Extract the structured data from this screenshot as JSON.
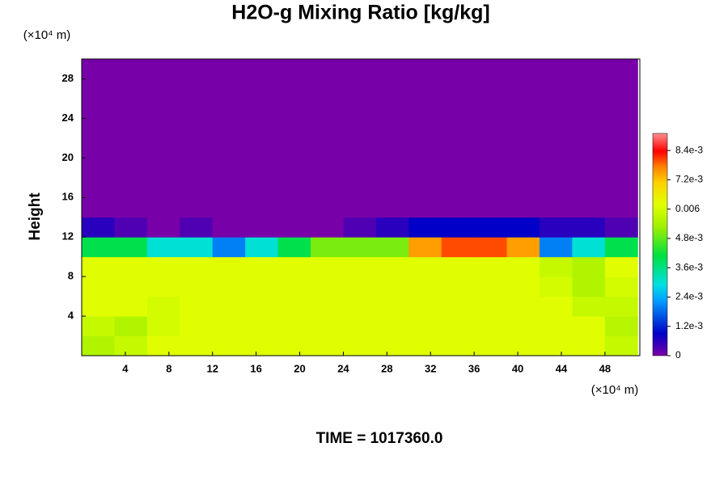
{
  "chart_data": {
    "type": "heatmap",
    "title": "H2O-g Mixing Ratio [kg/kg]",
    "ylabel": "Height",
    "x_unit": "(×10⁴ m)",
    "y_unit": "(×10⁴ m)",
    "annotation": "TIME = 1017360.0",
    "xlim": [
      0,
      51.2
    ],
    "ylim": [
      0,
      30
    ],
    "xticks": [
      4,
      8,
      12,
      16,
      20,
      24,
      28,
      32,
      36,
      40,
      44,
      48
    ],
    "yticks": [
      4,
      8,
      12,
      16,
      20,
      24,
      28
    ],
    "xbins": [
      0,
      3,
      6,
      9,
      12,
      15,
      18,
      21,
      24,
      27,
      30,
      33,
      36,
      39,
      42,
      45,
      48,
      51
    ],
    "ybins": [
      0,
      2,
      4,
      6,
      8,
      10,
      12,
      14,
      16,
      18,
      20,
      22,
      24,
      26,
      28,
      30
    ],
    "z": [
      [
        0.0055,
        0.0058,
        0.0062,
        0.0062,
        0.0062,
        0.0062,
        0.0062,
        0.0062,
        0.0062,
        0.0062,
        0.0062,
        0.0062,
        0.0062,
        0.0062,
        0.0062,
        0.0062,
        0.0058
      ],
      [
        0.0058,
        0.0055,
        0.006,
        0.0062,
        0.0062,
        0.0062,
        0.0062,
        0.0062,
        0.0062,
        0.0062,
        0.0062,
        0.0062,
        0.0062,
        0.0062,
        0.0062,
        0.0062,
        0.0056
      ],
      [
        0.0062,
        0.0062,
        0.006,
        0.0062,
        0.0062,
        0.0062,
        0.0062,
        0.0062,
        0.0062,
        0.0062,
        0.0062,
        0.0062,
        0.0062,
        0.0062,
        0.0062,
        0.0058,
        0.0058
      ],
      [
        0.0062,
        0.0062,
        0.0062,
        0.0062,
        0.0062,
        0.0062,
        0.0062,
        0.0062,
        0.0062,
        0.0062,
        0.0062,
        0.0062,
        0.0062,
        0.0062,
        0.006,
        0.0055,
        0.006
      ],
      [
        0.0062,
        0.0062,
        0.0062,
        0.0062,
        0.0062,
        0.0062,
        0.0062,
        0.0062,
        0.0062,
        0.0062,
        0.0062,
        0.0062,
        0.0062,
        0.0062,
        0.0058,
        0.0055,
        0.0062
      ],
      [
        0.004,
        0.004,
        0.003,
        0.003,
        0.002,
        0.003,
        0.004,
        0.005,
        0.005,
        0.005,
        0.0075,
        0.008,
        0.008,
        0.0075,
        0.002,
        0.003,
        0.004
      ],
      [
        0.0006,
        0.0003,
        0,
        0.0003,
        0,
        0,
        0,
        0,
        0.0003,
        0.0006,
        0.0009,
        0.0009,
        0.0009,
        0.0009,
        0.0006,
        0.0006,
        0.0003
      ],
      [
        0,
        0,
        0,
        0,
        0,
        0,
        0,
        0,
        0,
        0,
        0,
        0,
        0,
        0,
        0,
        0,
        0
      ],
      [
        0,
        0,
        0,
        0,
        0,
        0,
        0,
        0,
        0,
        0,
        0,
        0,
        0,
        0,
        0,
        0,
        0
      ],
      [
        0,
        0,
        0,
        0,
        0,
        0,
        0,
        0,
        0,
        0,
        0,
        0,
        0,
        0,
        0,
        0,
        0
      ],
      [
        0,
        0,
        0,
        0,
        0,
        0,
        0,
        0,
        0,
        0,
        0,
        0,
        0,
        0,
        0,
        0,
        0
      ],
      [
        0,
        0,
        0,
        0,
        0,
        0,
        0,
        0,
        0,
        0,
        0,
        0,
        0,
        0,
        0,
        0,
        0
      ],
      [
        0,
        0,
        0,
        0,
        0,
        0,
        0,
        0,
        0,
        0,
        0,
        0,
        0,
        0,
        0,
        0,
        0
      ],
      [
        0,
        0,
        0,
        0,
        0,
        0,
        0,
        0,
        0,
        0,
        0,
        0,
        0,
        0,
        0,
        0,
        0
      ],
      [
        0,
        0,
        0,
        0,
        0,
        0,
        0,
        0,
        0,
        0,
        0,
        0,
        0,
        0,
        0,
        0,
        0
      ]
    ],
    "clim": [
      0,
      0.0091
    ],
    "colorscale": [
      [
        0,
        "#7800a8"
      ],
      [
        0.1,
        "#0000c8"
      ],
      [
        0.25,
        "#00a0ff"
      ],
      [
        0.32,
        "#00e0e0"
      ],
      [
        0.45,
        "#00e040"
      ],
      [
        0.58,
        "#a0f000"
      ],
      [
        0.68,
        "#e0ff00"
      ],
      [
        0.78,
        "#ffd000"
      ],
      [
        0.85,
        "#ff8000"
      ],
      [
        0.92,
        "#ff0000"
      ],
      [
        1,
        "#ff9090"
      ]
    ],
    "cticks": [
      0,
      {
        "value": 0.0012,
        "label": "1.2e-3"
      },
      {
        "value": 0.0024,
        "label": "2.4e-3"
      },
      {
        "value": 0.0036,
        "label": "3.6e-3"
      },
      {
        "value": 0.0048,
        "label": "4.8e-3"
      },
      0.006,
      {
        "value": 0.0072,
        "label": "7.2e-3"
      },
      {
        "value": 0.0084,
        "label": "8.4e-3"
      }
    ]
  }
}
